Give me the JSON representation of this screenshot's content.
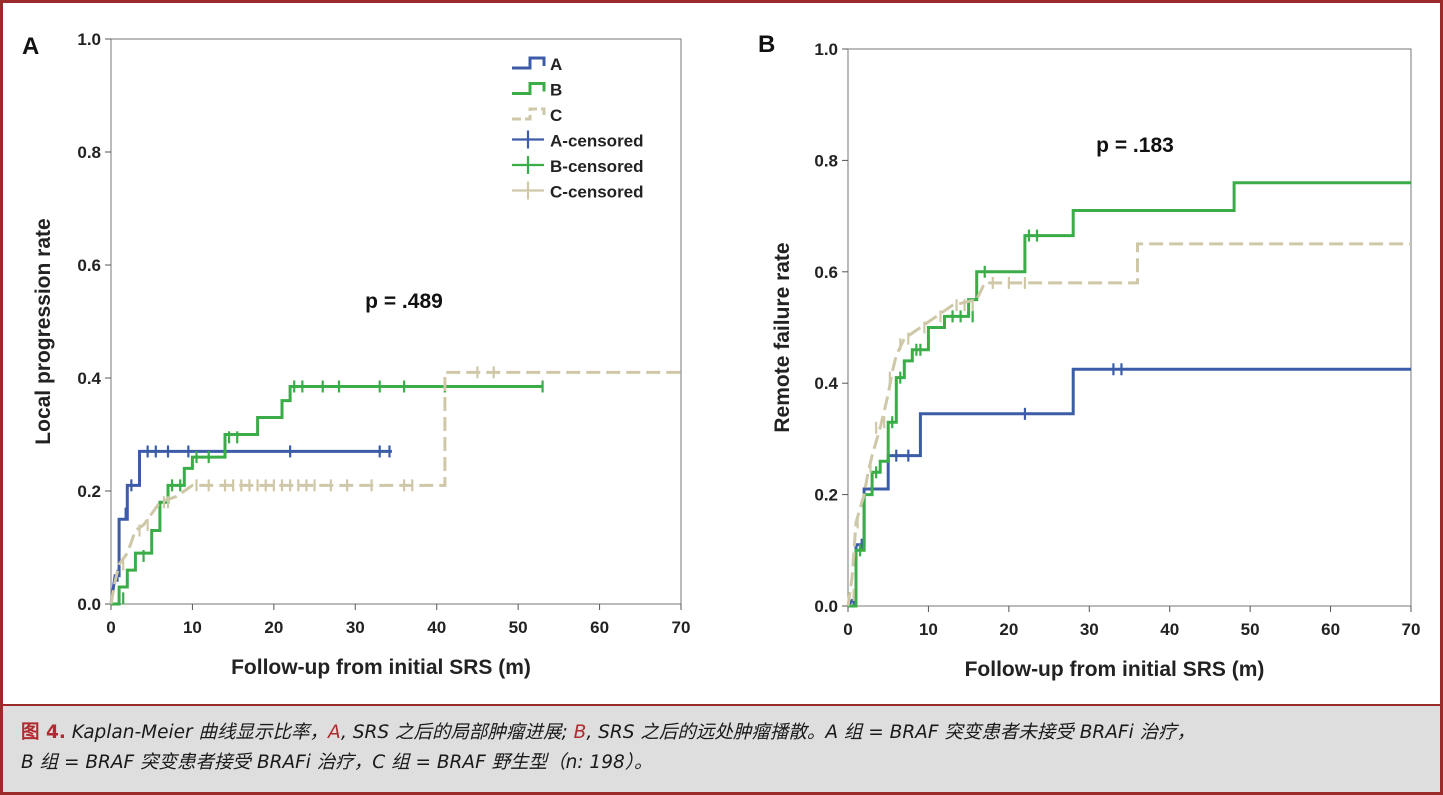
{
  "chart_data": [
    {
      "type": "line",
      "step": true,
      "panel_label": "A",
      "ylabel": "Local progression rate",
      "xlabel": "Follow-up from initial SRS (m)",
      "xlim": [
        0,
        70
      ],
      "ylim": [
        0,
        1.0
      ],
      "x_ticks": [
        "0",
        "10",
        "20",
        "30",
        "40",
        "50",
        "60",
        "70"
      ],
      "y_ticks": [
        "0.0",
        "0.2",
        "0.4",
        "0.6",
        "0.8",
        "1.0"
      ],
      "annotation": "p = .489",
      "legend": [
        "A",
        "B",
        "C",
        "A-censored",
        "B-censored",
        "C-censored"
      ],
      "grid": false,
      "series": [
        {
          "name": "A",
          "color": "#3d5ca8",
          "dash": false,
          "points": [
            [
              0,
              0
            ],
            [
              0.5,
              0.05
            ],
            [
              1,
              0.05
            ],
            [
              1,
              0.15
            ],
            [
              2,
              0.15
            ],
            [
              2,
              0.21
            ],
            [
              3.5,
              0.21
            ],
            [
              3.5,
              0.27
            ],
            [
              34.5,
              0.27
            ]
          ],
          "censored": [
            [
              0.8,
              0.05
            ],
            [
              1.8,
              0.16
            ],
            [
              2.5,
              0.21
            ],
            [
              4.5,
              0.27
            ],
            [
              5.5,
              0.27
            ],
            [
              7,
              0.27
            ],
            [
              9.5,
              0.27
            ],
            [
              22,
              0.27
            ],
            [
              33,
              0.27
            ],
            [
              34.2,
              0.27
            ]
          ]
        },
        {
          "name": "B",
          "color": "#3aac48",
          "dash": false,
          "points": [
            [
              0,
              0
            ],
            [
              1,
              0
            ],
            [
              1,
              0.03
            ],
            [
              2,
              0.03
            ],
            [
              2,
              0.06
            ],
            [
              3,
              0.06
            ],
            [
              3,
              0.09
            ],
            [
              5,
              0.09
            ],
            [
              5,
              0.13
            ],
            [
              6,
              0.13
            ],
            [
              6,
              0.18
            ],
            [
              7,
              0.18
            ],
            [
              7,
              0.21
            ],
            [
              9,
              0.21
            ],
            [
              9,
              0.24
            ],
            [
              10,
              0.24
            ],
            [
              10,
              0.26
            ],
            [
              14,
              0.26
            ],
            [
              14,
              0.3
            ],
            [
              18,
              0.3
            ],
            [
              18,
              0.33
            ],
            [
              21,
              0.33
            ],
            [
              21,
              0.36
            ],
            [
              22,
              0.36
            ],
            [
              22,
              0.385
            ],
            [
              53,
              0.385
            ]
          ],
          "censored": [
            [
              1.5,
              0.01
            ],
            [
              4,
              0.085
            ],
            [
              7.5,
              0.21
            ],
            [
              8.5,
              0.21
            ],
            [
              10.5,
              0.26
            ],
            [
              12,
              0.26
            ],
            [
              14.5,
              0.295
            ],
            [
              15.5,
              0.295
            ],
            [
              22.5,
              0.385
            ],
            [
              23.5,
              0.385
            ],
            [
              26,
              0.385
            ],
            [
              28,
              0.385
            ],
            [
              33,
              0.385
            ],
            [
              36,
              0.385
            ],
            [
              41,
              0.385
            ],
            [
              53,
              0.385
            ]
          ]
        },
        {
          "name": "C",
          "color": "#cfc8a8",
          "dash": true,
          "points": [
            [
              0,
              0
            ],
            [
              0.5,
              0.04
            ],
            [
              1,
              0.07
            ],
            [
              2,
              0.09
            ],
            [
              2.5,
              0.11
            ],
            [
              3,
              0.13
            ],
            [
              4,
              0.14
            ],
            [
              5,
              0.16
            ],
            [
              6,
              0.18
            ],
            [
              8,
              0.19
            ],
            [
              9,
              0.2
            ],
            [
              10,
              0.21
            ],
            [
              41,
              0.21
            ],
            [
              41,
              0.41
            ],
            [
              70,
              0.41
            ]
          ],
          "censored": [
            [
              1.5,
              0.07
            ],
            [
              3.5,
              0.13
            ],
            [
              4.5,
              0.14
            ],
            [
              6.5,
              0.18
            ],
            [
              7,
              0.18
            ],
            [
              10.5,
              0.21
            ],
            [
              12,
              0.21
            ],
            [
              14,
              0.21
            ],
            [
              15,
              0.21
            ],
            [
              16,
              0.21
            ],
            [
              17,
              0.21
            ],
            [
              18,
              0.21
            ],
            [
              19,
              0.21
            ],
            [
              20,
              0.21
            ],
            [
              21,
              0.21
            ],
            [
              22,
              0.21
            ],
            [
              23,
              0.21
            ],
            [
              24,
              0.21
            ],
            [
              25,
              0.21
            ],
            [
              27,
              0.21
            ],
            [
              29,
              0.21
            ],
            [
              32,
              0.21
            ],
            [
              36,
              0.21
            ],
            [
              37,
              0.21
            ],
            [
              45,
              0.41
            ],
            [
              47,
              0.41
            ]
          ]
        }
      ]
    },
    {
      "type": "line",
      "step": true,
      "panel_label": "B",
      "ylabel": "Remote failure rate",
      "xlabel": "Follow-up from initial SRS (m)",
      "xlim": [
        0,
        70
      ],
      "ylim": [
        0,
        1.0
      ],
      "x_ticks": [
        "0",
        "10",
        "20",
        "30",
        "40",
        "50",
        "60",
        "70"
      ],
      "y_ticks": [
        "0.0",
        "0.2",
        "0.4",
        "0.6",
        "0.8",
        "1.0"
      ],
      "annotation": "p = .183",
      "grid": false,
      "series": [
        {
          "name": "A",
          "color": "#3d5ca8",
          "dash": false,
          "points": [
            [
              0,
              0
            ],
            [
              0.5,
              0.01
            ],
            [
              1,
              0.01
            ],
            [
              1,
              0.11
            ],
            [
              2,
              0.11
            ],
            [
              2,
              0.21
            ],
            [
              5,
              0.21
            ],
            [
              5,
              0.27
            ],
            [
              9,
              0.27
            ],
            [
              9,
              0.345
            ],
            [
              28,
              0.345
            ],
            [
              28,
              0.425
            ],
            [
              70,
              0.425
            ]
          ],
          "censored": [
            [
              0.7,
              0.01
            ],
            [
              1.7,
              0.11
            ],
            [
              6,
              0.27
            ],
            [
              7.5,
              0.27
            ],
            [
              22,
              0.345
            ],
            [
              33,
              0.425
            ],
            [
              34,
              0.425
            ]
          ]
        },
        {
          "name": "B",
          "color": "#3aac48",
          "dash": false,
          "points": [
            [
              0,
              0
            ],
            [
              1,
              0
            ],
            [
              1,
              0.1
            ],
            [
              2,
              0.1
            ],
            [
              2,
              0.2
            ],
            [
              3,
              0.2
            ],
            [
              3,
              0.24
            ],
            [
              4,
              0.24
            ],
            [
              4,
              0.26
            ],
            [
              5,
              0.26
            ],
            [
              5,
              0.33
            ],
            [
              6,
              0.33
            ],
            [
              6,
              0.41
            ],
            [
              7,
              0.41
            ],
            [
              7,
              0.44
            ],
            [
              8,
              0.44
            ],
            [
              8,
              0.46
            ],
            [
              10,
              0.46
            ],
            [
              10,
              0.5
            ],
            [
              12,
              0.5
            ],
            [
              12,
              0.52
            ],
            [
              15,
              0.52
            ],
            [
              15,
              0.55
            ],
            [
              16,
              0.55
            ],
            [
              16,
              0.6
            ],
            [
              22,
              0.6
            ],
            [
              22,
              0.665
            ],
            [
              28,
              0.665
            ],
            [
              28,
              0.71
            ],
            [
              48,
              0.71
            ],
            [
              48,
              0.76
            ],
            [
              70,
              0.76
            ]
          ],
          "censored": [
            [
              1.5,
              0.1
            ],
            [
              3.5,
              0.24
            ],
            [
              5.5,
              0.33
            ],
            [
              6.5,
              0.41
            ],
            [
              8.5,
              0.46
            ],
            [
              9,
              0.46
            ],
            [
              13,
              0.52
            ],
            [
              14,
              0.52
            ],
            [
              15.5,
              0.52
            ],
            [
              17,
              0.6
            ],
            [
              22.5,
              0.665
            ],
            [
              23.5,
              0.665
            ]
          ]
        },
        {
          "name": "C",
          "color": "#cfc8a8",
          "dash": true,
          "points": [
            [
              0,
              0
            ],
            [
              0.5,
              0.05
            ],
            [
              1,
              0.15
            ],
            [
              2,
              0.2
            ],
            [
              2.5,
              0.24
            ],
            [
              3,
              0.27
            ],
            [
              4,
              0.32
            ],
            [
              5,
              0.38
            ],
            [
              5.5,
              0.42
            ],
            [
              6,
              0.45
            ],
            [
              7,
              0.48
            ],
            [
              8,
              0.49
            ],
            [
              9,
              0.5
            ],
            [
              10,
              0.51
            ],
            [
              11,
              0.52
            ],
            [
              12,
              0.53
            ],
            [
              13,
              0.54
            ],
            [
              16,
              0.55
            ],
            [
              17,
              0.58
            ],
            [
              36,
              0.58
            ],
            [
              36,
              0.65
            ],
            [
              70,
              0.65
            ]
          ],
          "censored": [
            [
              0.7,
              0.02
            ],
            [
              1.2,
              0.15
            ],
            [
              2.8,
              0.25
            ],
            [
              3.5,
              0.32
            ],
            [
              4.5,
              0.33
            ],
            [
              5.2,
              0.41
            ],
            [
              6.5,
              0.47
            ],
            [
              7.5,
              0.48
            ],
            [
              9.5,
              0.5
            ],
            [
              11.5,
              0.52
            ],
            [
              13.5,
              0.54
            ],
            [
              14.5,
              0.54
            ],
            [
              15.5,
              0.54
            ],
            [
              18,
              0.58
            ],
            [
              20,
              0.58
            ],
            [
              22,
              0.58
            ]
          ]
        }
      ]
    }
  ],
  "caption": {
    "label": "图 4.",
    "part1": "Kaplan-Meier 曲线显示比率，",
    "letter_a": "A",
    "part2": ", SRS 之后的局部肿瘤进展;",
    "letter_b": "B",
    "part3": ", SRS 之后的远处肿瘤播散。A 组 = BRAF 突变患者未接受 BRAFi 治疗，",
    "part4": "B 组 = BRAF 突变患者接受 BRAFi 治疗，C 组 = BRAF 野生型（n: 198）。"
  }
}
